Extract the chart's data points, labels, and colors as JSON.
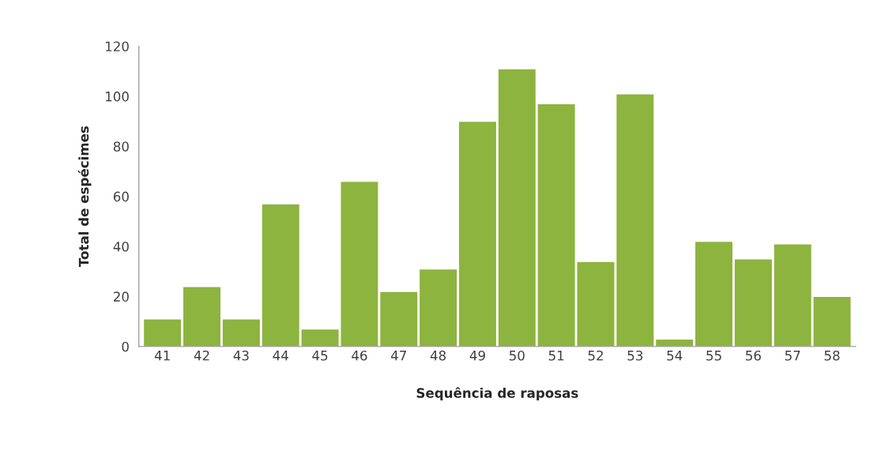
{
  "chart_data": {
    "type": "bar",
    "xlabel": "Sequência de raposas",
    "ylabel": "Total de espécimes",
    "categories": [
      "41",
      "42",
      "43",
      "44",
      "45",
      "46",
      "47",
      "48",
      "49",
      "50",
      "51",
      "52",
      "53",
      "54",
      "55",
      "56",
      "57",
      "58"
    ],
    "values": [
      11,
      24,
      11,
      57,
      7,
      66,
      22,
      31,
      90,
      111,
      97,
      34,
      101,
      3,
      42,
      35,
      41,
      20
    ],
    "color": "#8db43e",
    "ylim": [
      0,
      120
    ],
    "yticks": [
      0,
      20,
      40,
      60,
      80,
      100,
      120
    ],
    "grid": false
  }
}
